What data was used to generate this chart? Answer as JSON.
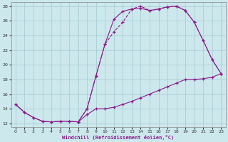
{
  "xlabel": "Windchill (Refroidissement éolien,°C)",
  "bg_color": "#cce8ed",
  "line_color": "#8b1a8b",
  "grid_color": "#aacdd5",
  "xlim": [
    -0.5,
    23.5
  ],
  "ylim": [
    11.5,
    28.5
  ],
  "yticks": [
    12,
    14,
    16,
    18,
    20,
    22,
    24,
    26,
    28
  ],
  "xticks": [
    0,
    1,
    2,
    3,
    4,
    5,
    6,
    7,
    8,
    9,
    10,
    11,
    12,
    13,
    14,
    15,
    16,
    17,
    18,
    19,
    20,
    21,
    22,
    23
  ],
  "line1_x": [
    0,
    1,
    2,
    3,
    4,
    5,
    6,
    7,
    8,
    9,
    10,
    11,
    12,
    13,
    14,
    15,
    16,
    17,
    18,
    19,
    20,
    21,
    22,
    23
  ],
  "line1_y": [
    14.6,
    13.5,
    12.8,
    12.3,
    12.2,
    12.3,
    12.3,
    12.2,
    14.0,
    18.5,
    22.8,
    26.2,
    27.3,
    27.6,
    27.7,
    27.4,
    27.6,
    27.9,
    28.0,
    27.4,
    25.8,
    23.3,
    20.7,
    18.8
  ],
  "line2_x": [
    0,
    1,
    2,
    3,
    4,
    5,
    6,
    7,
    8,
    9,
    10,
    11,
    12,
    13,
    14,
    15,
    16,
    17,
    18,
    19,
    20,
    21,
    22,
    23
  ],
  "line2_y": [
    14.6,
    13.5,
    12.8,
    12.3,
    12.2,
    12.3,
    12.3,
    12.2,
    13.2,
    14.0,
    14.0,
    14.2,
    14.6,
    15.0,
    15.5,
    16.0,
    16.5,
    17.0,
    17.5,
    18.0,
    18.0,
    18.1,
    18.3,
    18.8
  ],
  "line3_x": [
    7,
    8,
    9,
    10,
    11,
    12,
    13,
    14,
    15,
    16,
    17,
    18,
    19,
    20,
    21,
    22,
    23
  ],
  "line3_y": [
    12.2,
    14.0,
    18.5,
    22.8,
    24.5,
    25.8,
    27.6,
    28.0,
    27.4,
    27.6,
    27.9,
    28.0,
    27.4,
    25.8,
    23.3,
    20.7,
    18.8
  ]
}
